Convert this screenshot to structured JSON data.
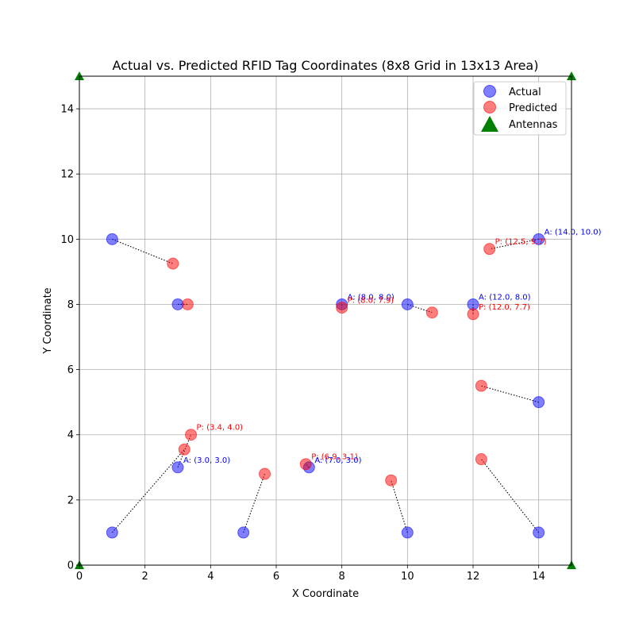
{
  "chart_data": {
    "type": "scatter",
    "title": "Actual vs. Predicted RFID Tag Coordinates (8x8 Grid in 13x13 Area)",
    "xlabel": "X Coordinate",
    "ylabel": "Y Coordinate",
    "xlim": [
      0,
      15
    ],
    "ylim": [
      0,
      15
    ],
    "xticks": [
      0,
      2,
      4,
      6,
      8,
      10,
      12,
      14
    ],
    "yticks": [
      0,
      2,
      4,
      6,
      8,
      10,
      12,
      14
    ],
    "grid": true,
    "legend_position": "top-right",
    "colors": {
      "actual": "#0000ff",
      "predicted": "#ff0000",
      "antennas": "#008000",
      "connector": "#000000"
    },
    "series": [
      {
        "name": "Actual",
        "marker": "circle",
        "points": [
          {
            "x": 1,
            "y": 10
          },
          {
            "x": 3,
            "y": 8
          },
          {
            "x": 8,
            "y": 8
          },
          {
            "x": 10,
            "y": 8
          },
          {
            "x": 12,
            "y": 8
          },
          {
            "x": 14,
            "y": 10
          },
          {
            "x": 14,
            "y": 5
          },
          {
            "x": 3,
            "y": 3
          },
          {
            "x": 1,
            "y": 1
          },
          {
            "x": 5,
            "y": 1
          },
          {
            "x": 7,
            "y": 3
          },
          {
            "x": 10,
            "y": 1
          },
          {
            "x": 14,
            "y": 1
          }
        ]
      },
      {
        "name": "Predicted",
        "marker": "circle",
        "points": [
          {
            "x": 2.85,
            "y": 9.25
          },
          {
            "x": 3.3,
            "y": 8.0
          },
          {
            "x": 8.0,
            "y": 7.9
          },
          {
            "x": 10.75,
            "y": 7.75
          },
          {
            "x": 12.0,
            "y": 7.7
          },
          {
            "x": 12.5,
            "y": 9.7
          },
          {
            "x": 12.25,
            "y": 5.5
          },
          {
            "x": 3.4,
            "y": 4.0
          },
          {
            "x": 3.2,
            "y": 3.55
          },
          {
            "x": 5.65,
            "y": 2.8
          },
          {
            "x": 6.9,
            "y": 3.1
          },
          {
            "x": 9.5,
            "y": 2.6
          },
          {
            "x": 12.25,
            "y": 3.25
          }
        ]
      },
      {
        "name": "Antennas",
        "marker": "triangle",
        "points": [
          {
            "x": 0,
            "y": 15
          },
          {
            "x": 15,
            "y": 15
          },
          {
            "x": 0,
            "y": 0
          },
          {
            "x": 15,
            "y": 0
          }
        ]
      }
    ],
    "connections": [
      {
        "actual": [
          1,
          10
        ],
        "predicted": [
          2.85,
          9.25
        ]
      },
      {
        "actual": [
          3,
          8
        ],
        "predicted": [
          3.3,
          8.0
        ]
      },
      {
        "actual": [
          8,
          8
        ],
        "predicted": [
          8.0,
          7.9
        ]
      },
      {
        "actual": [
          10,
          8
        ],
        "predicted": [
          10.75,
          7.75
        ]
      },
      {
        "actual": [
          12,
          8
        ],
        "predicted": [
          12.0,
          7.7
        ]
      },
      {
        "actual": [
          14,
          10
        ],
        "predicted": [
          12.5,
          9.7
        ]
      },
      {
        "actual": [
          14,
          5
        ],
        "predicted": [
          12.25,
          5.5
        ]
      },
      {
        "actual": [
          3,
          3
        ],
        "predicted": [
          3.4,
          4.0
        ]
      },
      {
        "actual": [
          1,
          1
        ],
        "predicted": [
          3.2,
          3.55
        ]
      },
      {
        "actual": [
          5,
          1
        ],
        "predicted": [
          5.65,
          2.8
        ]
      },
      {
        "actual": [
          7,
          3
        ],
        "predicted": [
          6.9,
          3.1
        ]
      },
      {
        "actual": [
          10,
          1
        ],
        "predicted": [
          9.5,
          2.6
        ]
      },
      {
        "actual": [
          14,
          1
        ],
        "predicted": [
          12.25,
          3.25
        ]
      }
    ],
    "annotations": [
      {
        "text": "A: (14.0, 10.0)",
        "kind": "actual",
        "x": 14,
        "y": 10
      },
      {
        "text": "P: (12.5, 9.7)",
        "kind": "predicted",
        "x": 12.5,
        "y": 9.7
      },
      {
        "text": "A: (8.0, 8.0)",
        "kind": "actual",
        "x": 8,
        "y": 8
      },
      {
        "text": "P: (8.0, 7.9)",
        "kind": "predicted",
        "x": 8.0,
        "y": 7.9
      },
      {
        "text": "A: (12.0, 8.0)",
        "kind": "actual",
        "x": 12,
        "y": 8
      },
      {
        "text": "P: (12.0, 7.7)",
        "kind": "predicted",
        "x": 12.0,
        "y": 7.7
      },
      {
        "text": "P: (3.4, 4.0)",
        "kind": "predicted",
        "x": 3.4,
        "y": 4.0
      },
      {
        "text": "A: (3.0, 3.0)",
        "kind": "actual",
        "x": 3,
        "y": 3
      },
      {
        "text": "P: (6.9, 3.1)",
        "kind": "predicted",
        "x": 6.9,
        "y": 3.1
      },
      {
        "text": "A: (7.0, 3.0)",
        "kind": "actual",
        "x": 7,
        "y": 3
      }
    ]
  }
}
